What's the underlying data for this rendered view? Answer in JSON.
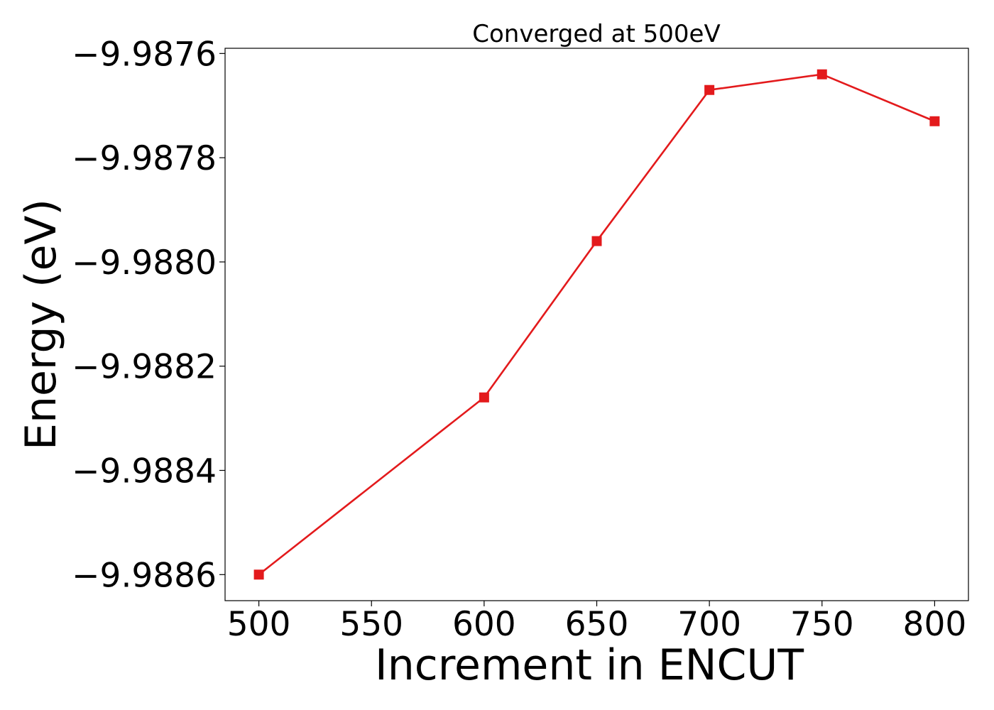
{
  "chart_data": {
    "type": "line",
    "title": "Converged at 500eV",
    "xlabel": "Increment in ENCUT",
    "ylabel": "Energy (eV)",
    "x": [
      500,
      600,
      650,
      700,
      750,
      800
    ],
    "series": [
      {
        "values": [
          -9.9886,
          -9.98826,
          -9.98796,
          -9.98767,
          -9.98764,
          -9.98773
        ],
        "color": "#e31a1c",
        "marker": "square"
      }
    ],
    "xlim": [
      485,
      815
    ],
    "ylim": [
      -9.98865,
      -9.98759
    ],
    "xticks": [
      500,
      550,
      600,
      650,
      700,
      750,
      800
    ],
    "xtick_labels": [
      "500",
      "550",
      "600",
      "650",
      "700",
      "750",
      "800"
    ],
    "yticks": [
      -9.9886,
      -9.9884,
      -9.9882,
      -9.988,
      -9.9878,
      -9.9876
    ],
    "ytick_labels": [
      "−9.9886",
      "−9.9884",
      "−9.9882",
      "−9.9880",
      "−9.9878",
      "−9.9876"
    ],
    "grid": false,
    "legend": "none"
  }
}
